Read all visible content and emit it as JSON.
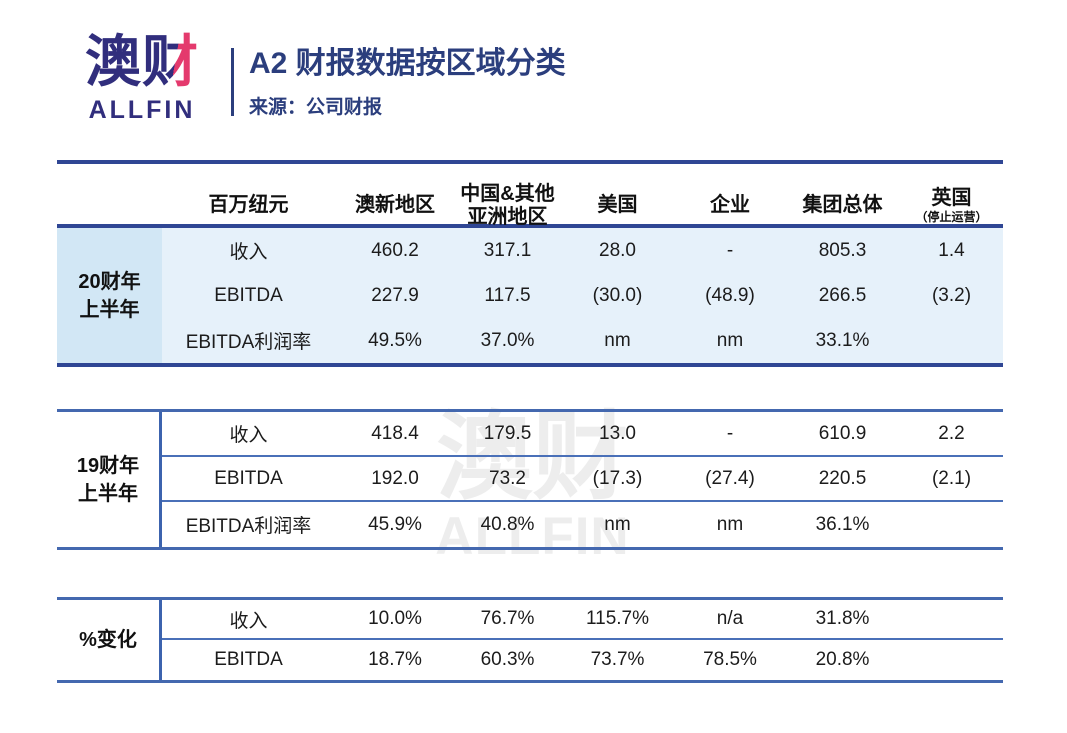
{
  "brand": {
    "logo_cn_first": "澳",
    "logo_cn_second": "财",
    "logo_en": "ALLFIN",
    "navy": "#312e7d",
    "accent_pink": "#e43a6d"
  },
  "header": {
    "title": "A2 财报数据按区域分类",
    "source": "来源：公司财报"
  },
  "watermark": {
    "cn": "澳财",
    "en": "ALLFIN"
  },
  "table": {
    "unit_header": "百万纽元",
    "columns": [
      "澳新地区",
      "中国&其他\n亚洲地区",
      "美国",
      "企业",
      "集团总体"
    ],
    "uk_column": {
      "label": "英国",
      "sublabel": "（停止运营）"
    },
    "blocks": [
      {
        "group": "20财年\n上半年",
        "rows": [
          {
            "label": "收入",
            "cells": [
              "460.2",
              "317.1",
              "28.0",
              "-",
              "805.3",
              "1.4"
            ]
          },
          {
            "label": "EBITDA",
            "cells": [
              "227.9",
              "117.5",
              "(30.0)",
              "(48.9)",
              "266.5",
              "(3.2)"
            ]
          },
          {
            "label": "EBITDA利润率",
            "cells": [
              "49.5%",
              "37.0%",
              "nm",
              "nm",
              "33.1%",
              ""
            ]
          }
        ]
      },
      {
        "group": "19财年\n上半年",
        "rows": [
          {
            "label": "收入",
            "cells": [
              "418.4",
              "179.5",
              "13.0",
              "-",
              "610.9",
              "2.2"
            ]
          },
          {
            "label": "EBITDA",
            "cells": [
              "192.0",
              "73.2",
              "(17.3)",
              "(27.4)",
              "220.5",
              "(2.1)"
            ]
          },
          {
            "label": "EBITDA利润率",
            "cells": [
              "45.9%",
              "40.8%",
              "nm",
              "nm",
              "36.1%",
              ""
            ]
          }
        ]
      },
      {
        "group": "%变化",
        "rows": [
          {
            "label": "收入",
            "cells": [
              "10.0%",
              "76.7%",
              "115.7%",
              "n/a",
              "31.8%",
              ""
            ]
          },
          {
            "label": "EBITDA",
            "cells": [
              "18.7%",
              "60.3%",
              "73.7%",
              "78.5%",
              "20.8%",
              ""
            ]
          }
        ]
      }
    ]
  },
  "chart_data": {
    "type": "table",
    "title": "A2 财报数据按区域分类",
    "source": "来源：公司财报",
    "unit": "百万纽元",
    "columns": [
      "澳新地区",
      "中国&其他亚洲地区",
      "美国",
      "企业",
      "集团总体",
      "英国（停止运营）"
    ],
    "row_groups": [
      {
        "group": "20财年上半年",
        "rows": [
          {
            "metric": "收入",
            "values": [
              "460.2",
              "317.1",
              "28.0",
              "-",
              "805.3",
              "1.4"
            ]
          },
          {
            "metric": "EBITDA",
            "values": [
              "227.9",
              "117.5",
              "(30.0)",
              "(48.9)",
              "266.5",
              "(3.2)"
            ]
          },
          {
            "metric": "EBITDA利润率",
            "values": [
              "49.5%",
              "37.0%",
              "nm",
              "nm",
              "33.1%",
              ""
            ]
          }
        ]
      },
      {
        "group": "19财年上半年",
        "rows": [
          {
            "metric": "收入",
            "values": [
              "418.4",
              "179.5",
              "13.0",
              "-",
              "610.9",
              "2.2"
            ]
          },
          {
            "metric": "EBITDA",
            "values": [
              "192.0",
              "73.2",
              "(17.3)",
              "(27.4)",
              "220.5",
              "(2.1)"
            ]
          },
          {
            "metric": "EBITDA利润率",
            "values": [
              "45.9%",
              "40.8%",
              "nm",
              "nm",
              "36.1%",
              ""
            ]
          }
        ]
      },
      {
        "group": "%变化",
        "rows": [
          {
            "metric": "收入",
            "values": [
              "10.0%",
              "76.7%",
              "115.7%",
              "n/a",
              "31.8%",
              ""
            ]
          },
          {
            "metric": "EBITDA",
            "values": [
              "18.7%",
              "60.3%",
              "73.7%",
              "78.5%",
              "20.8%",
              ""
            ]
          }
        ]
      }
    ]
  }
}
